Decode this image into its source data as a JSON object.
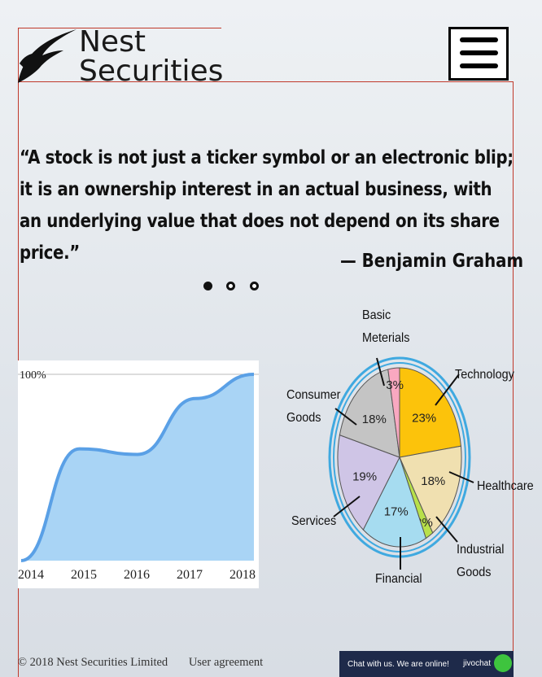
{
  "logo": {
    "line1": "Nest",
    "line2": "Securities"
  },
  "menu": {
    "icon": "hamburger-menu-icon"
  },
  "quote": {
    "text": "“A stock is not just a ticker symbol or an electronic blip; it is an ownership interest in an actual business, with an underlying value that does not depend on its share price.”",
    "author": "— Benjamin Graham"
  },
  "carousel": {
    "dot_count": 3,
    "active_index": 0
  },
  "colors": {
    "accent": "#c0392b",
    "area_fill": "#a9d4f5",
    "area_line": "#5aa0e6"
  },
  "chart_data": [
    {
      "type": "area",
      "x": [
        "2014",
        "2015",
        "2016",
        "2017",
        "2018"
      ],
      "series": [
        {
          "values": [
            0,
            60,
            57,
            87,
            100
          ]
        }
      ],
      "ytick": "100%",
      "xlabel": "",
      "ylabel": ""
    },
    {
      "type": "pie",
      "categories": [
        "Technology",
        "Healthcare",
        "Industrial Goods",
        "Financial",
        "Services",
        "Consumer Goods",
        "Basic Meterials"
      ],
      "values": [
        23,
        18,
        2,
        17,
        19,
        18,
        3
      ],
      "labels": [
        "23%",
        "18%",
        "2%",
        "17%",
        "19%",
        "18%",
        "3%"
      ],
      "colors": [
        "#fcc30b",
        "#f0e0b0",
        "#b8e04a",
        "#a6dcf0",
        "#cfc5e6",
        "#c4c4c4",
        "#f9a8c0"
      ]
    }
  ],
  "footer": {
    "copyright": "© 2018 Nest Securities Limited",
    "agreement": "User agreement"
  },
  "chat": {
    "text": "Chat with us. We are online!",
    "brand": "jivochat"
  }
}
